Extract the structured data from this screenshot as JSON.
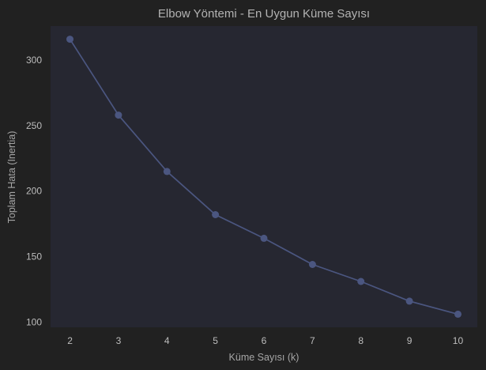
{
  "colors": {
    "background": "#212121",
    "plot_area": "#262731",
    "line": "#4b5680",
    "marker": "#4b5680",
    "text": "#b3b3b3"
  },
  "chart_data": {
    "type": "line",
    "title": "Elbow Yöntemi - En Uygun Küme Sayısı",
    "xlabel": "Küme Sayısı (k)",
    "ylabel": "Toplam Hata (Inertia)",
    "x": [
      2,
      3,
      4,
      5,
      6,
      7,
      8,
      9,
      10
    ],
    "series": [
      {
        "values": [
          316,
          258,
          215,
          182,
          164,
          144,
          131,
          116,
          106
        ],
        "marker": "circle"
      }
    ],
    "xticks": [
      2,
      3,
      4,
      5,
      6,
      7,
      8,
      9,
      10
    ],
    "yticks": [
      100,
      150,
      200,
      250,
      300
    ],
    "xlim": [
      1.6,
      10.4
    ],
    "ylim": [
      96,
      326
    ],
    "grid": false,
    "legend": "none"
  }
}
